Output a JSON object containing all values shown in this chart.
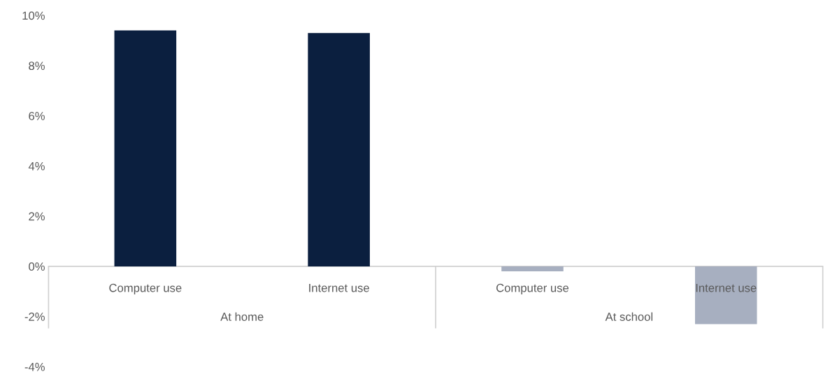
{
  "chart_data": {
    "type": "bar",
    "categories": [
      "Computer use",
      "Internet use",
      "Computer use",
      "Internet use"
    ],
    "values": [
      9.4,
      9.3,
      -0.2,
      -2.3
    ],
    "colors": [
      "#0b1f3f",
      "#0b1f3f",
      "#a7afc0",
      "#a7afc0"
    ],
    "annotations": [
      "At home",
      "At school"
    ],
    "ylim": [
      -4,
      10
    ],
    "yticks": [
      {
        "value": -4,
        "label": "-4%"
      },
      {
        "value": -2,
        "label": "-2%"
      },
      {
        "value": 0,
        "label": "0%"
      },
      {
        "value": 2,
        "label": "2%"
      },
      {
        "value": 4,
        "label": "4%"
      },
      {
        "value": 6,
        "label": "6%"
      },
      {
        "value": 8,
        "label": "8%"
      },
      {
        "value": 10,
        "label": "10%"
      }
    ],
    "grid": false,
    "legend": false
  }
}
